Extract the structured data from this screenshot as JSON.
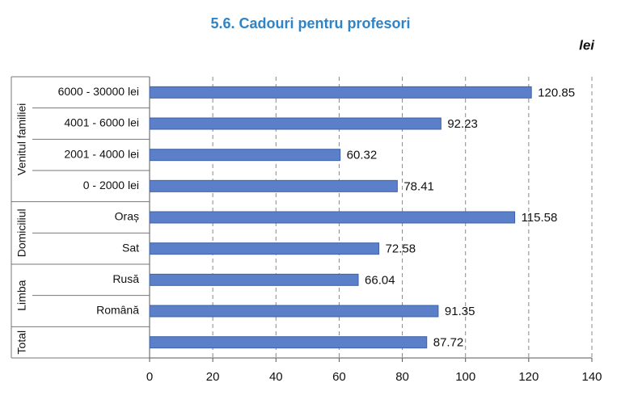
{
  "chart_data": {
    "type": "bar",
    "title": "5.6. Cadouri pentru profesori",
    "unit": "lei",
    "groups": [
      {
        "name": "Venitul familiei",
        "categories": [
          "6000 - 30000 lei",
          "4001 - 6000 lei",
          "2001 - 4000 lei",
          "0 - 2000 lei"
        ],
        "values": [
          120.85,
          92.23,
          60.32,
          78.41
        ]
      },
      {
        "name": "Domiciliul",
        "categories": [
          "Oraș",
          "Sat"
        ],
        "values": [
          115.58,
          72.58
        ]
      },
      {
        "name": "Limba",
        "categories": [
          "Rusă",
          "Română"
        ],
        "values": [
          66.04,
          91.35
        ]
      },
      {
        "name": "Total",
        "categories": [
          null
        ],
        "values": [
          87.72
        ]
      }
    ],
    "color": "#5b7fc8",
    "xlim": [
      0,
      140
    ],
    "xticks": [
      0,
      20,
      40,
      60,
      80,
      100,
      120,
      140
    ],
    "grid": true
  }
}
